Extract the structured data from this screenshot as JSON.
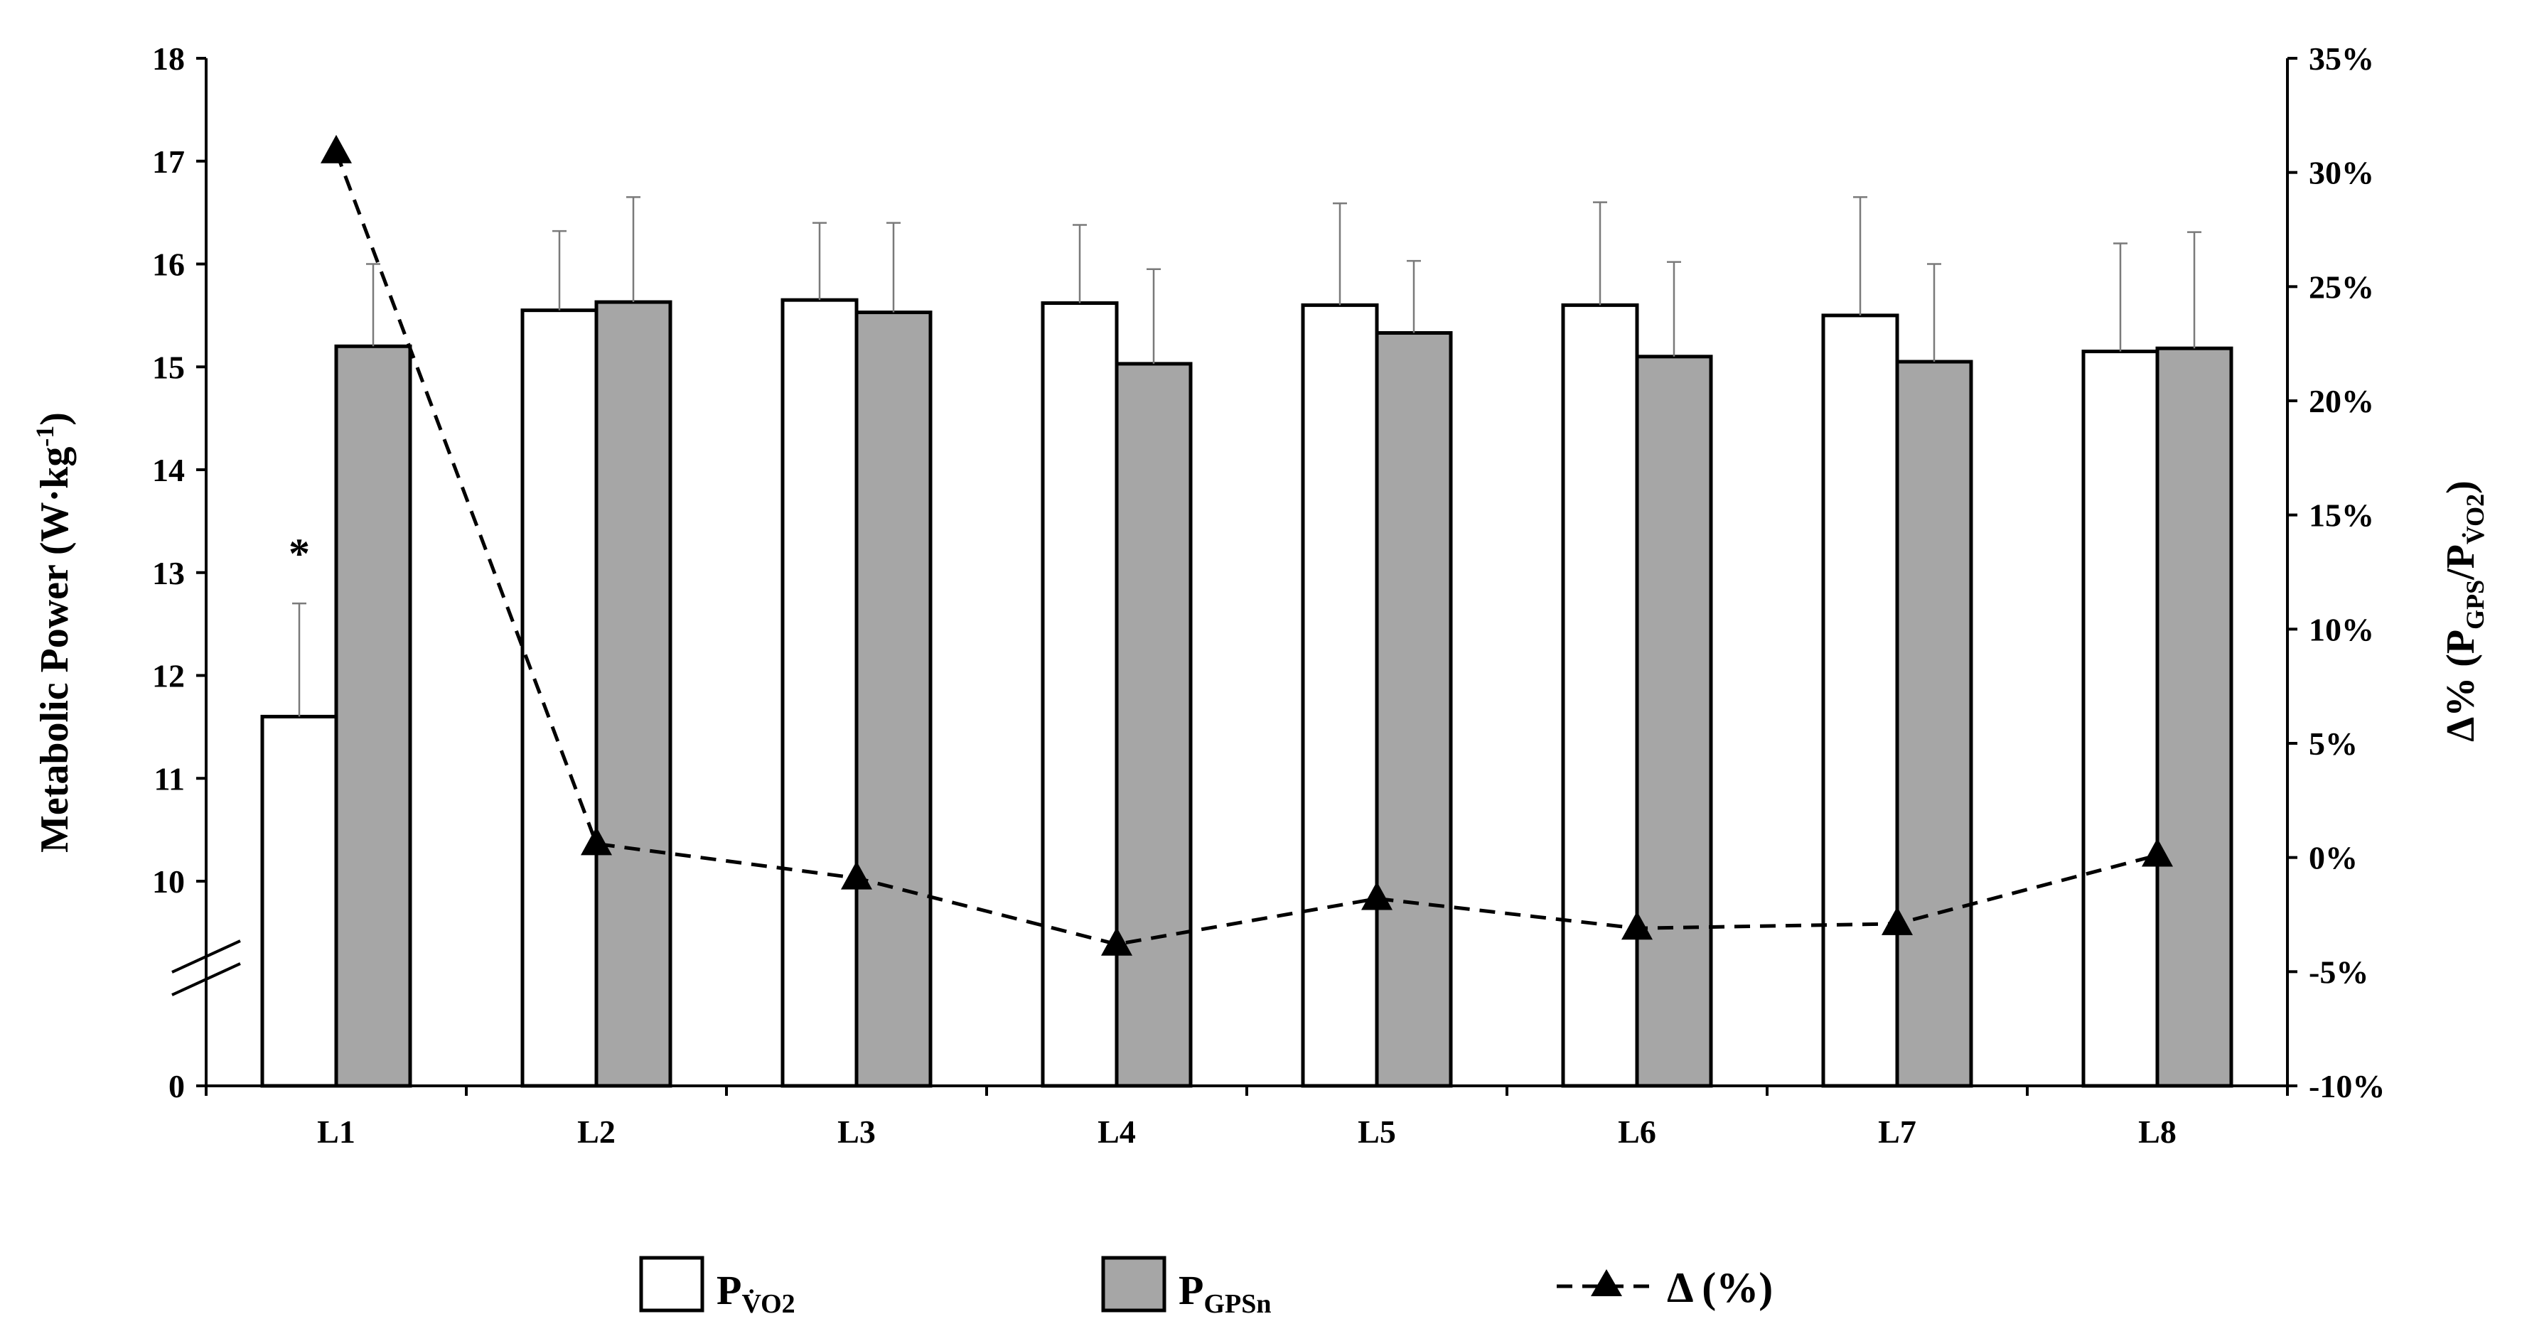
{
  "chart_data": {
    "type": "bar",
    "categories": [
      "L1",
      "L2",
      "L3",
      "L4",
      "L5",
      "L6",
      "L7",
      "L8"
    ],
    "series": [
      {
        "name_main": "P",
        "name_sub": "V̇O2",
        "axis": "left",
        "color": "#ffffff",
        "values": [
          11.6,
          15.55,
          15.65,
          15.62,
          15.6,
          15.6,
          15.5,
          15.15
        ],
        "errors": [
          1.1,
          0.77,
          0.75,
          0.76,
          0.99,
          1.0,
          1.15,
          1.05
        ]
      },
      {
        "name_main": "P",
        "name_sub": "GPSn",
        "axis": "left",
        "color": "#a6a6a6",
        "values": [
          15.2,
          15.63,
          15.53,
          15.03,
          15.33,
          15.1,
          15.05,
          15.18
        ],
        "errors": [
          0.8,
          1.02,
          0.87,
          0.92,
          0.7,
          0.92,
          0.95,
          1.13
        ]
      },
      {
        "name": "Δ (%)",
        "axis": "right",
        "type": "line",
        "style": "dashed",
        "marker": "triangle",
        "color": "#000000",
        "values": [
          30.9,
          0.6,
          -0.9,
          -3.8,
          -1.8,
          -3.1,
          -2.9,
          0.1
        ]
      }
    ],
    "annotations": [
      {
        "text": "*",
        "category": "L1",
        "series_index": 0
      }
    ],
    "y_left": {
      "label_main": "Metabolic Power (W·kg",
      "label_sup": "-1",
      "label_end": ")",
      "ticks": [
        "0",
        "10",
        "11",
        "12",
        "13",
        "14",
        "15",
        "16",
        "17",
        "18"
      ],
      "broken_axis": true,
      "range_below_break": [
        0,
        0
      ],
      "range_above_break": [
        10,
        18
      ]
    },
    "y_right": {
      "label_main": "Δ% (P",
      "label_sub1": "GPS",
      "label_mid": "/P",
      "label_sub2": "V̇O2",
      "label_end": ")",
      "ticks": [
        "-10%",
        "-5%",
        "0%",
        "5%",
        "10%",
        "15%",
        "20%",
        "25%",
        "30%",
        "35%"
      ],
      "range": [
        -10,
        35
      ]
    },
    "grid": false,
    "legend_position": "bottom"
  }
}
